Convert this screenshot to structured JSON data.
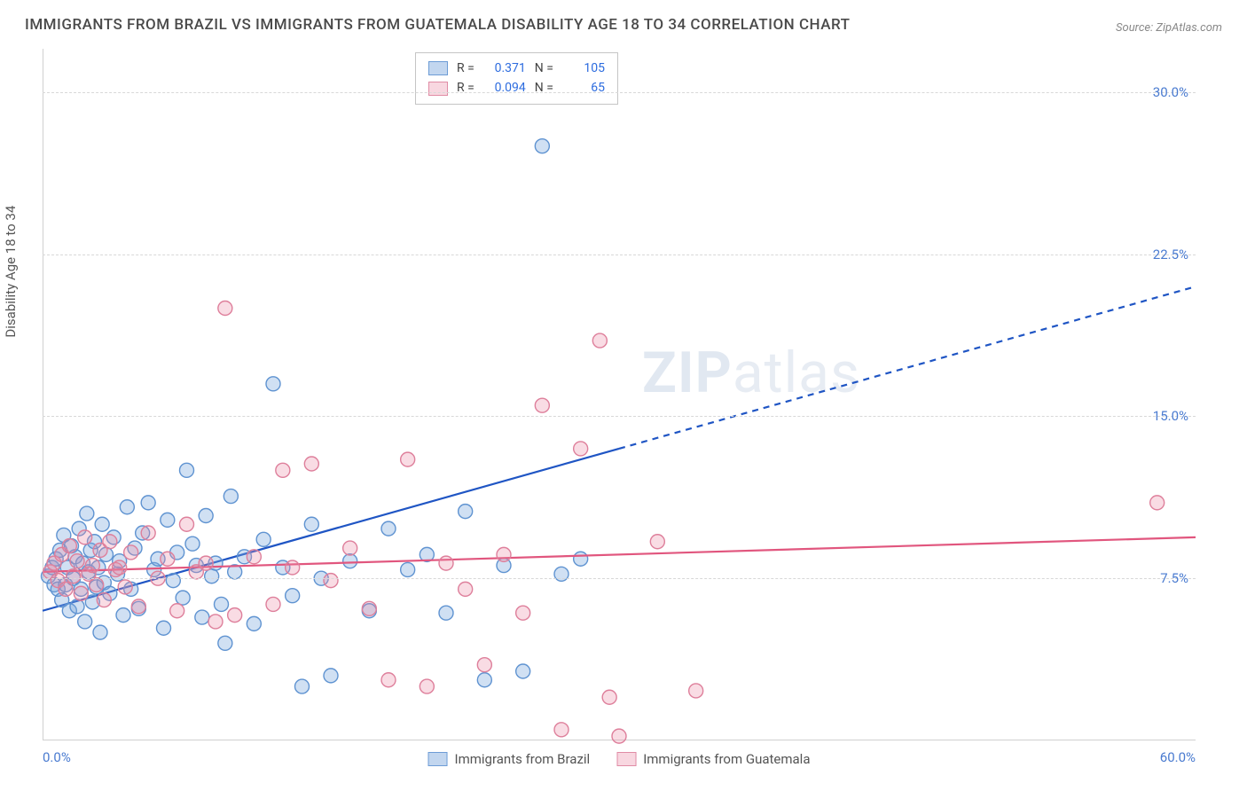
{
  "title": "IMMIGRANTS FROM BRAZIL VS IMMIGRANTS FROM GUATEMALA DISABILITY AGE 18 TO 34 CORRELATION CHART",
  "source": "Source: ZipAtlas.com",
  "ylabel": "Disability Age 18 to 34",
  "watermark_bold": "ZIP",
  "watermark_rest": "atlas",
  "chart": {
    "type": "scatter",
    "xlim": [
      0,
      60
    ],
    "ylim": [
      0,
      32
    ],
    "xlabel_min": "0.0%",
    "xlabel_max": "60.0%",
    "yticks": [
      {
        "v": 7.5,
        "label": "7.5%"
      },
      {
        "v": 15.0,
        "label": "15.0%"
      },
      {
        "v": 22.5,
        "label": "22.5%"
      },
      {
        "v": 30.0,
        "label": "30.0%"
      }
    ],
    "grid_color": "#d8d8d8",
    "background_color": "#ffffff",
    "marker_radius": 8,
    "marker_stroke_width": 1.4,
    "series": [
      {
        "name": "Immigrants from Brazil",
        "fill": "rgba(120,165,220,0.35)",
        "stroke": "#5f93d1",
        "r": 0.371,
        "n": 105,
        "trend": {
          "color": "#1f55c4",
          "width": 2.2,
          "y_at_x0": 6.0,
          "y_at_xmax": 21.0,
          "solid_until_x": 30,
          "dashed_after": true
        },
        "points": [
          [
            0.3,
            7.6
          ],
          [
            0.5,
            8.0
          ],
          [
            0.6,
            7.2
          ],
          [
            0.7,
            8.4
          ],
          [
            0.8,
            7.0
          ],
          [
            0.9,
            8.8
          ],
          [
            1.0,
            6.5
          ],
          [
            1.1,
            9.5
          ],
          [
            1.2,
            7.2
          ],
          [
            1.3,
            8.0
          ],
          [
            1.4,
            6.0
          ],
          [
            1.5,
            9.0
          ],
          [
            1.6,
            7.5
          ],
          [
            1.7,
            8.5
          ],
          [
            1.8,
            6.2
          ],
          [
            1.9,
            9.8
          ],
          [
            2.0,
            7.0
          ],
          [
            2.1,
            8.2
          ],
          [
            2.2,
            5.5
          ],
          [
            2.3,
            10.5
          ],
          [
            2.4,
            7.8
          ],
          [
            2.5,
            8.8
          ],
          [
            2.6,
            6.4
          ],
          [
            2.7,
            9.2
          ],
          [
            2.8,
            7.1
          ],
          [
            2.9,
            8.0
          ],
          [
            3.0,
            5.0
          ],
          [
            3.1,
            10.0
          ],
          [
            3.2,
            7.3
          ],
          [
            3.3,
            8.6
          ],
          [
            3.5,
            6.8
          ],
          [
            3.7,
            9.4
          ],
          [
            3.9,
            7.7
          ],
          [
            4.0,
            8.3
          ],
          [
            4.2,
            5.8
          ],
          [
            4.4,
            10.8
          ],
          [
            4.6,
            7.0
          ],
          [
            4.8,
            8.9
          ],
          [
            5.0,
            6.1
          ],
          [
            5.2,
            9.6
          ],
          [
            5.5,
            11.0
          ],
          [
            5.8,
            7.9
          ],
          [
            6.0,
            8.4
          ],
          [
            6.3,
            5.2
          ],
          [
            6.5,
            10.2
          ],
          [
            6.8,
            7.4
          ],
          [
            7.0,
            8.7
          ],
          [
            7.3,
            6.6
          ],
          [
            7.5,
            12.5
          ],
          [
            7.8,
            9.1
          ],
          [
            8.0,
            8.1
          ],
          [
            8.3,
            5.7
          ],
          [
            8.5,
            10.4
          ],
          [
            8.8,
            7.6
          ],
          [
            9.0,
            8.2
          ],
          [
            9.3,
            6.3
          ],
          [
            9.5,
            4.5
          ],
          [
            9.8,
            11.3
          ],
          [
            10.0,
            7.8
          ],
          [
            10.5,
            8.5
          ],
          [
            11.0,
            5.4
          ],
          [
            11.5,
            9.3
          ],
          [
            12.0,
            16.5
          ],
          [
            12.5,
            8.0
          ],
          [
            13.0,
            6.7
          ],
          [
            13.5,
            2.5
          ],
          [
            14.0,
            10.0
          ],
          [
            14.5,
            7.5
          ],
          [
            15.0,
            3.0
          ],
          [
            16.0,
            8.3
          ],
          [
            17.0,
            6.0
          ],
          [
            18.0,
            9.8
          ],
          [
            19.0,
            7.9
          ],
          [
            20.0,
            8.6
          ],
          [
            21.0,
            5.9
          ],
          [
            22.0,
            10.6
          ],
          [
            23.0,
            2.8
          ],
          [
            24.0,
            8.1
          ],
          [
            25.0,
            3.2
          ],
          [
            26.0,
            27.5
          ],
          [
            27.0,
            7.7
          ],
          [
            28.0,
            8.4
          ]
        ]
      },
      {
        "name": "Immigrants from Guatemala",
        "fill": "rgba(235,140,165,0.30)",
        "stroke": "#de7f9b",
        "r": 0.094,
        "n": 65,
        "trend": {
          "color": "#e1567e",
          "width": 2.2,
          "y_at_x0": 7.8,
          "y_at_xmax": 9.4,
          "solid_until_x": 60,
          "dashed_after": false
        },
        "points": [
          [
            0.4,
            7.8
          ],
          [
            0.6,
            8.2
          ],
          [
            0.8,
            7.4
          ],
          [
            1.0,
            8.6
          ],
          [
            1.2,
            7.0
          ],
          [
            1.4,
            9.0
          ],
          [
            1.6,
            7.6
          ],
          [
            1.8,
            8.3
          ],
          [
            2.0,
            6.8
          ],
          [
            2.2,
            9.4
          ],
          [
            2.4,
            7.7
          ],
          [
            2.6,
            8.1
          ],
          [
            2.8,
            7.2
          ],
          [
            3.0,
            8.8
          ],
          [
            3.2,
            6.5
          ],
          [
            3.5,
            9.2
          ],
          [
            3.8,
            7.9
          ],
          [
            4.0,
            8.0
          ],
          [
            4.3,
            7.1
          ],
          [
            4.6,
            8.7
          ],
          [
            5.0,
            6.2
          ],
          [
            5.5,
            9.6
          ],
          [
            6.0,
            7.5
          ],
          [
            6.5,
            8.4
          ],
          [
            7.0,
            6.0
          ],
          [
            7.5,
            10.0
          ],
          [
            8.0,
            7.8
          ],
          [
            8.5,
            8.2
          ],
          [
            9.0,
            5.5
          ],
          [
            9.5,
            20.0
          ],
          [
            10.0,
            5.8
          ],
          [
            11.0,
            8.5
          ],
          [
            12.0,
            6.3
          ],
          [
            12.5,
            12.5
          ],
          [
            13.0,
            8.0
          ],
          [
            14.0,
            12.8
          ],
          [
            15.0,
            7.4
          ],
          [
            16.0,
            8.9
          ],
          [
            17.0,
            6.1
          ],
          [
            18.0,
            2.8
          ],
          [
            19.0,
            13.0
          ],
          [
            20.0,
            2.5
          ],
          [
            21.0,
            8.2
          ],
          [
            22.0,
            7.0
          ],
          [
            23.0,
            3.5
          ],
          [
            24.0,
            8.6
          ],
          [
            25.0,
            5.9
          ],
          [
            26.0,
            15.5
          ],
          [
            27.0,
            0.5
          ],
          [
            28.0,
            13.5
          ],
          [
            29.0,
            18.5
          ],
          [
            29.5,
            2.0
          ],
          [
            30.0,
            0.2
          ],
          [
            32.0,
            9.2
          ],
          [
            34.0,
            2.3
          ],
          [
            58.0,
            11.0
          ]
        ]
      }
    ]
  },
  "legend_top": {
    "r_label": "R =",
    "n_label": "N ="
  },
  "legend_bottom": [
    {
      "swatch": "blue",
      "label": "Immigrants from Brazil"
    },
    {
      "swatch": "pink",
      "label": "Immigrants from Guatemala"
    }
  ]
}
